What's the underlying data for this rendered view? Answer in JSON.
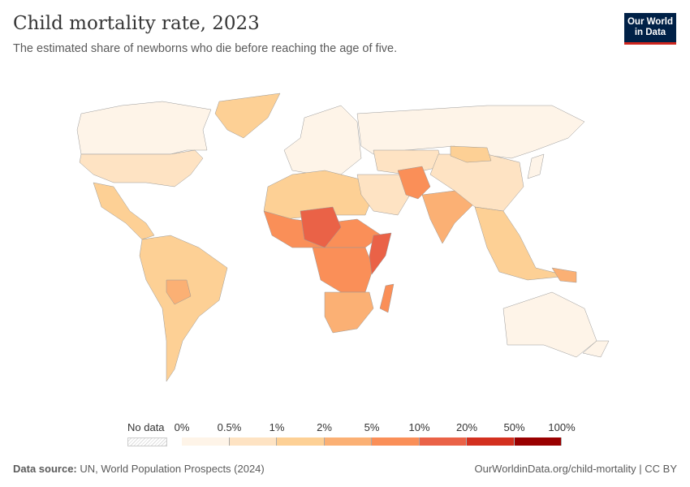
{
  "header": {
    "title": "Child mortality rate, 2023",
    "subtitle": "The estimated share of newborns who die before reaching the age of five.",
    "logo": "Our World in Data"
  },
  "legend": {
    "no_data_label": "No data",
    "ticks": [
      "0%",
      "0.5%",
      "1%",
      "2%",
      "5%",
      "10%",
      "20%",
      "50%",
      "100%"
    ],
    "bin_colors": [
      "#fef4e8",
      "#fee3c3",
      "#fdd095",
      "#fbb074",
      "#fa8f58",
      "#ea6247",
      "#d3301f",
      "#990000"
    ]
  },
  "map": {
    "regions": [
      {
        "name": "Canada",
        "bin": 0
      },
      {
        "name": "United States",
        "bin": 1
      },
      {
        "name": "Greenland",
        "bin": 2
      },
      {
        "name": "Mexico & Central America",
        "bin": 2
      },
      {
        "name": "South America",
        "bin": 2
      },
      {
        "name": "Bolivia",
        "bin": 3
      },
      {
        "name": "Europe",
        "bin": 0
      },
      {
        "name": "Russia",
        "bin": 0
      },
      {
        "name": "North Africa",
        "bin": 2
      },
      {
        "name": "Sahel",
        "bin": 4
      },
      {
        "name": "Niger & Chad",
        "bin": 5
      },
      {
        "name": "Central Africa",
        "bin": 4
      },
      {
        "name": "Somalia",
        "bin": 5
      },
      {
        "name": "Southern Africa",
        "bin": 3
      },
      {
        "name": "Madagascar",
        "bin": 4
      },
      {
        "name": "Middle East",
        "bin": 1
      },
      {
        "name": "Central Asia",
        "bin": 1
      },
      {
        "name": "Pakistan & Afghanistan",
        "bin": 4
      },
      {
        "name": "India",
        "bin": 3
      },
      {
        "name": "China",
        "bin": 1
      },
      {
        "name": "Mongolia",
        "bin": 2
      },
      {
        "name": "Southeast Asia",
        "bin": 2
      },
      {
        "name": "Papua New Guinea",
        "bin": 3
      },
      {
        "name": "Australia",
        "bin": 0
      },
      {
        "name": "New Zealand",
        "bin": 0
      },
      {
        "name": "Japan",
        "bin": 0
      }
    ]
  },
  "footer": {
    "source_label": "Data source:",
    "source": "UN, World Population Prospects (2024)",
    "url": "OurWorldinData.org/child-mortality",
    "license": "CC BY"
  }
}
